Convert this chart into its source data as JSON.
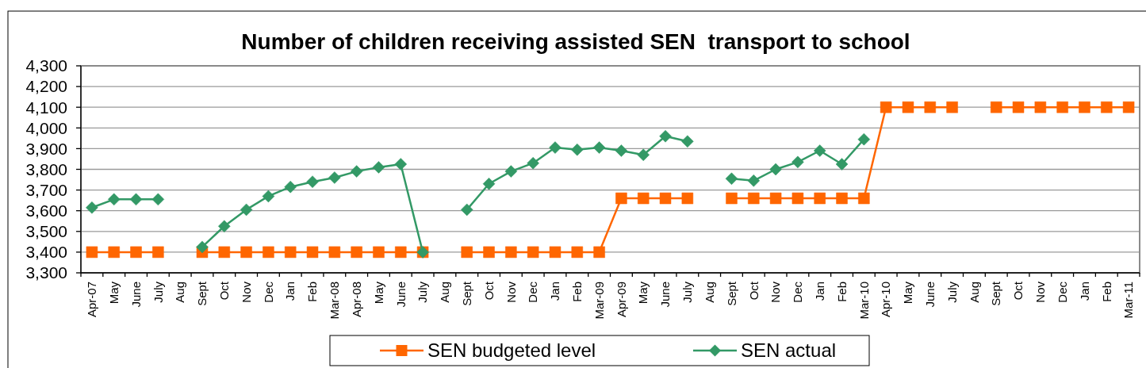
{
  "chart_data": {
    "type": "line",
    "title": "Number of children receiving assisted SEN  transport to school",
    "categories": [
      "Apr-07",
      "May",
      "June",
      "July",
      "Aug",
      "Sept",
      "Oct",
      "Nov",
      "Dec",
      "Jan",
      "Feb",
      "Mar-08",
      "Apr-08",
      "May",
      "June",
      "July",
      "Aug",
      "Sept",
      "Oct",
      "Nov",
      "Dec",
      "Jan",
      "Feb",
      "Mar-09",
      "Apr-09",
      "May",
      "June",
      "July",
      "Aug",
      "Sept",
      "Oct",
      "Nov",
      "Dec",
      "Jan",
      "Feb",
      "Mar-10",
      "Apr-10",
      "May",
      "June",
      "July",
      "Aug",
      "Sept",
      "Oct",
      "Nov",
      "Dec",
      "Jan",
      "Feb",
      "Mar-11"
    ],
    "series": [
      {
        "name": "SEN budgeted level",
        "color": "#ff6600",
        "marker": "square",
        "values": [
          3400,
          3400,
          3400,
          3400,
          null,
          3400,
          3400,
          3400,
          3400,
          3400,
          3400,
          3400,
          3400,
          3400,
          3400,
          3400,
          null,
          3400,
          3400,
          3400,
          3400,
          3400,
          3400,
          3400,
          3660,
          3660,
          3660,
          3660,
          null,
          3660,
          3660,
          3660,
          3660,
          3660,
          3660,
          3660,
          4100,
          4100,
          4100,
          4100,
          null,
          4100,
          4100,
          4100,
          4100,
          4100,
          4100,
          4100
        ]
      },
      {
        "name": "SEN actual",
        "color": "#339966",
        "marker": "diamond",
        "values": [
          3615,
          3655,
          3655,
          3655,
          null,
          3425,
          3525,
          3605,
          3670,
          3715,
          3740,
          3760,
          3790,
          3810,
          3825,
          3400,
          null,
          3605,
          3730,
          3790,
          3830,
          3905,
          3895,
          3905,
          3890,
          3870,
          3960,
          3935,
          null,
          3755,
          3745,
          3800,
          3835,
          3890,
          3825,
          3945,
          null,
          null,
          null,
          null,
          null,
          null,
          null,
          null,
          null,
          null,
          null,
          null
        ]
      }
    ],
    "ylim": [
      3300,
      4300
    ],
    "yticks": [
      {
        "value": 3300,
        "label": "3,300"
      },
      {
        "value": 3400,
        "label": "3,400"
      },
      {
        "value": 3500,
        "label": "3,500"
      },
      {
        "value": 3600,
        "label": "3,600"
      },
      {
        "value": 3700,
        "label": "3,700"
      },
      {
        "value": 3800,
        "label": "3,800"
      },
      {
        "value": 3900,
        "label": "3,900"
      },
      {
        "value": 4000,
        "label": "4,000"
      },
      {
        "value": 4100,
        "label": "4,100"
      },
      {
        "value": 4200,
        "label": "4,200"
      },
      {
        "value": 4300,
        "label": "4,300"
      }
    ],
    "grid": "y",
    "legend": "bottom"
  }
}
